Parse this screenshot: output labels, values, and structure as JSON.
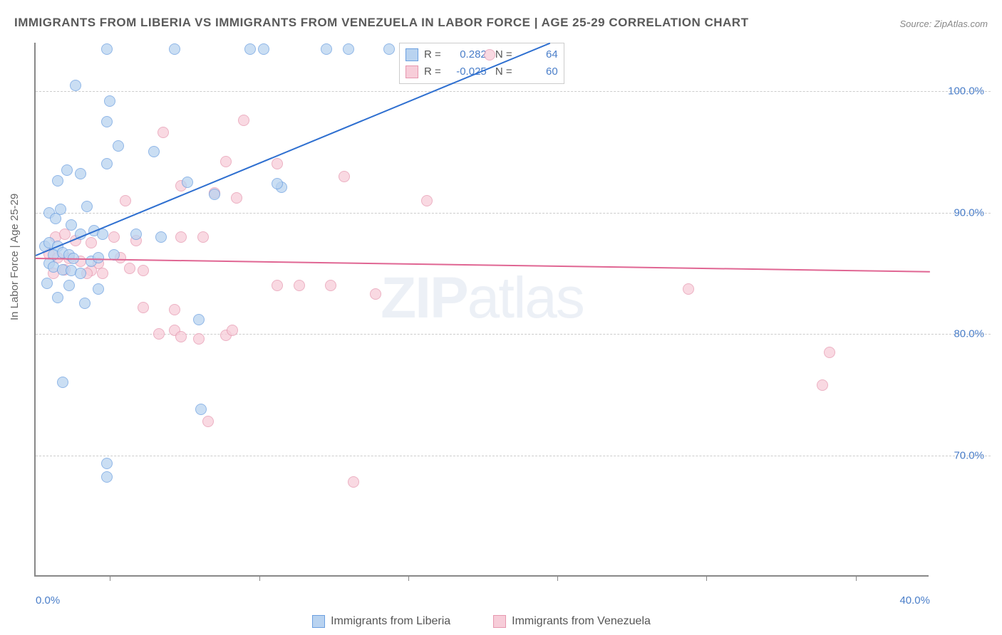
{
  "title": "IMMIGRANTS FROM LIBERIA VS IMMIGRANTS FROM VENEZUELA IN LABOR FORCE | AGE 25-29 CORRELATION CHART",
  "source": "Source: ZipAtlas.com",
  "y_axis_label": "In Labor Force | Age 25-29",
  "watermark": "ZIPatlas",
  "chart": {
    "type": "scatter",
    "x_domain": [
      0,
      40
    ],
    "y_domain": [
      60,
      104
    ],
    "x_ticks": [
      0,
      40
    ],
    "x_tick_labels": [
      "0.0%",
      "40.0%"
    ],
    "x_tick_marks": [
      0.083,
      0.25,
      0.417,
      0.583,
      0.75,
      0.917
    ],
    "y_ticks": [
      70,
      80,
      90,
      100
    ],
    "y_tick_labels": [
      "70.0%",
      "80.0%",
      "90.0%",
      "100.0%"
    ],
    "grid_color": "#cccccc",
    "background_color": "#ffffff",
    "marker_radius": 8,
    "series": [
      {
        "name": "Immigrants from Liberia",
        "fill": "#b9d3f0",
        "stroke": "#6b9fe0",
        "line_color": "#2e6fd0",
        "r": 0.282,
        "n": 64,
        "trend": {
          "x1": 0,
          "y1": 86.5,
          "x2": 23,
          "y2": 104
        },
        "points": [
          [
            3.2,
            103.5
          ],
          [
            6.2,
            103.5
          ],
          [
            9.6,
            103.5
          ],
          [
            10.2,
            103.5
          ],
          [
            13.0,
            103.5
          ],
          [
            14.0,
            103.5
          ],
          [
            15.8,
            103.5
          ],
          [
            3.3,
            99.2
          ],
          [
            1.8,
            100.5
          ],
          [
            3.2,
            97.5
          ],
          [
            1.0,
            92.6
          ],
          [
            1.4,
            93.5
          ],
          [
            2.0,
            93.2
          ],
          [
            3.2,
            94.0
          ],
          [
            3.7,
            95.5
          ],
          [
            5.3,
            95.0
          ],
          [
            6.8,
            92.5
          ],
          [
            11.0,
            92.1
          ],
          [
            10.8,
            92.4
          ],
          [
            8.0,
            91.5
          ],
          [
            0.6,
            90.0
          ],
          [
            0.9,
            89.5
          ],
          [
            1.1,
            90.3
          ],
          [
            1.6,
            89.0
          ],
          [
            2.0,
            88.2
          ],
          [
            2.3,
            90.5
          ],
          [
            2.6,
            88.5
          ],
          [
            3.0,
            88.2
          ],
          [
            4.5,
            88.2
          ],
          [
            5.6,
            88.0
          ],
          [
            0.4,
            87.2
          ],
          [
            0.6,
            87.5
          ],
          [
            1.0,
            87.2
          ],
          [
            0.8,
            86.5
          ],
          [
            1.2,
            86.7
          ],
          [
            1.5,
            86.5
          ],
          [
            1.7,
            86.2
          ],
          [
            2.5,
            86.0
          ],
          [
            2.8,
            86.3
          ],
          [
            3.5,
            86.5
          ],
          [
            0.6,
            85.8
          ],
          [
            0.8,
            85.5
          ],
          [
            1.2,
            85.3
          ],
          [
            1.6,
            85.2
          ],
          [
            2.0,
            85.0
          ],
          [
            0.5,
            84.2
          ],
          [
            1.5,
            84.0
          ],
          [
            2.8,
            83.7
          ],
          [
            1.0,
            83.0
          ],
          [
            2.2,
            82.5
          ],
          [
            7.3,
            81.2
          ],
          [
            1.2,
            76.0
          ],
          [
            7.4,
            73.8
          ],
          [
            3.2,
            69.3
          ],
          [
            3.2,
            68.2
          ]
        ]
      },
      {
        "name": "Immigrants from Venezuela",
        "fill": "#f7cdd9",
        "stroke": "#e697af",
        "line_color": "#e06693",
        "r": -0.025,
        "n": 60,
        "trend": {
          "x1": 0,
          "y1": 86.3,
          "x2": 40,
          "y2": 85.2
        },
        "points": [
          [
            20.3,
            103.0
          ],
          [
            9.3,
            97.6
          ],
          [
            5.7,
            96.6
          ],
          [
            8.5,
            94.2
          ],
          [
            10.8,
            94.0
          ],
          [
            13.8,
            93.0
          ],
          [
            4.0,
            91.0
          ],
          [
            6.5,
            92.2
          ],
          [
            8.0,
            91.6
          ],
          [
            9.0,
            91.2
          ],
          [
            17.5,
            91.0
          ],
          [
            0.9,
            88.0
          ],
          [
            1.3,
            88.2
          ],
          [
            1.8,
            87.7
          ],
          [
            2.5,
            87.5
          ],
          [
            3.5,
            88.0
          ],
          [
            4.5,
            87.7
          ],
          [
            6.5,
            88.0
          ],
          [
            7.5,
            88.0
          ],
          [
            0.6,
            86.6
          ],
          [
            1.0,
            86.3
          ],
          [
            1.5,
            86.2
          ],
          [
            2.0,
            86.0
          ],
          [
            2.8,
            85.8
          ],
          [
            3.8,
            86.3
          ],
          [
            2.5,
            85.2
          ],
          [
            4.2,
            85.4
          ],
          [
            0.8,
            85.0
          ],
          [
            1.3,
            85.3
          ],
          [
            2.3,
            85.0
          ],
          [
            3.0,
            85.0
          ],
          [
            4.8,
            85.2
          ],
          [
            10.8,
            84.0
          ],
          [
            11.8,
            84.0
          ],
          [
            13.2,
            84.0
          ],
          [
            15.2,
            83.3
          ],
          [
            4.8,
            82.2
          ],
          [
            6.2,
            82.0
          ],
          [
            5.5,
            80.0
          ],
          [
            6.2,
            80.3
          ],
          [
            6.5,
            79.8
          ],
          [
            7.3,
            79.6
          ],
          [
            8.5,
            79.9
          ],
          [
            8.8,
            80.3
          ],
          [
            29.2,
            83.7
          ],
          [
            35.5,
            78.5
          ],
          [
            35.2,
            75.8
          ],
          [
            7.7,
            72.8
          ],
          [
            14.2,
            67.8
          ]
        ]
      }
    ]
  },
  "legend": [
    {
      "swatch_fill": "#b9d3f0",
      "swatch_stroke": "#6b9fe0",
      "label": "Immigrants from Liberia"
    },
    {
      "swatch_fill": "#f7cdd9",
      "swatch_stroke": "#e697af",
      "label": "Immigrants from Venezuela"
    }
  ]
}
